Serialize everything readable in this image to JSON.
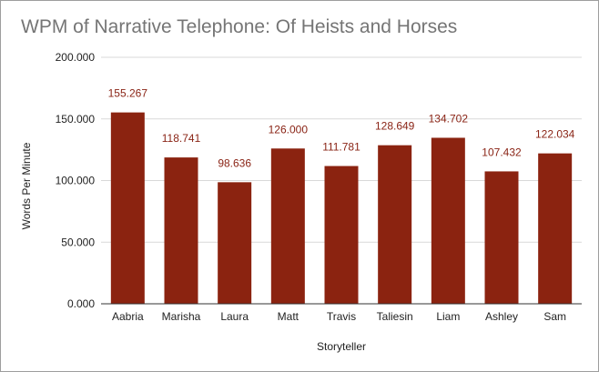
{
  "chart_data": {
    "type": "bar",
    "title": "WPM of Narrative Telephone: Of Heists and Horses",
    "xlabel": "Storyteller",
    "ylabel": "Words Per Minute",
    "ylim": [
      0,
      200
    ],
    "yticks": [
      0,
      50,
      100,
      150,
      200
    ],
    "ytick_labels": [
      "0.000",
      "50.000",
      "100.000",
      "150.000",
      "200.000"
    ],
    "categories": [
      "Aabria",
      "Marisha",
      "Laura",
      "Matt",
      "Travis",
      "Taliesin",
      "Liam",
      "Ashley",
      "Sam"
    ],
    "values": [
      155.267,
      118.741,
      98.636,
      126.0,
      111.781,
      128.649,
      134.702,
      107.432,
      122.034
    ],
    "value_labels": [
      "155.267",
      "118.741",
      "98.636",
      "126.000",
      "111.781",
      "128.649",
      "134.702",
      "107.432",
      "122.034"
    ],
    "bar_color": "#8b2310",
    "grid": true,
    "legend": "none"
  }
}
